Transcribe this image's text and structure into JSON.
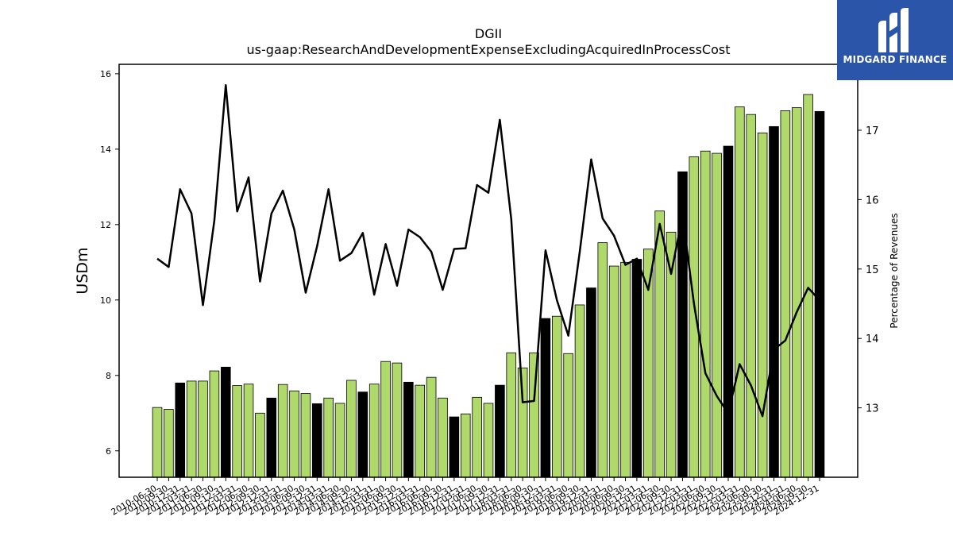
{
  "chart_data": {
    "type": "bar",
    "title": "DGII",
    "subtitle": "us-gaap:ResearchAndDevelopmentExpenseExcludingAcquiredInProcessCost",
    "ylabel": "USDm",
    "y2label": "Percentage of Revenues",
    "ylim": [
      5.3,
      16.25
    ],
    "y2lim": [
      12.0,
      17.95
    ],
    "yticks": [
      6,
      8,
      10,
      12,
      14,
      16
    ],
    "y2ticks": [
      13,
      14,
      15,
      16,
      17
    ],
    "grid": false,
    "bar_colors": {
      "quarter": "#b0d96b",
      "fiscal_year_end": "#000000"
    },
    "line_color": "#000000",
    "x_labels": [
      "2010-06-30",
      "2010-09-30",
      "2010-12-31",
      "2011-03-31",
      "2011-06-30",
      "2011-09-30",
      "2011-12-31",
      "2012-03-31",
      "2012-06-30",
      "2012-09-30",
      "2012-12-31",
      "2013-03-31",
      "2013-06-30",
      "2013-09-30",
      "2013-12-31",
      "2014-03-31",
      "2014-06-30",
      "2014-09-30",
      "2014-12-31",
      "2015-03-31",
      "2015-06-30",
      "2015-09-30",
      "2015-12-31",
      "2016-03-31",
      "2016-06-30",
      "2016-09-30",
      "2016-12-31",
      "2017-03-31",
      "2017-06-30",
      "2017-09-30",
      "2017-12-31",
      "2018-03-31",
      "2018-06-30",
      "2018-09-30",
      "2018-12-31",
      "2019-03-31",
      "2019-06-30",
      "2019-09-30",
      "2019-12-31",
      "2020-03-31",
      "2020-06-30",
      "2020-09-30",
      "2020-12-31",
      "2021-03-31",
      "2021-06-30",
      "2021-09-30",
      "2021-12-31",
      "2022-03-31",
      "2022-06-30",
      "2022-09-30",
      "2022-12-31",
      "2023-03-31",
      "2023-06-30",
      "2023-09-30",
      "2023-12-31",
      "2024-03-31",
      "2024-06-30",
      "2024-09-30",
      "2024-12-31"
    ],
    "series": [
      {
        "type": "bar",
        "values": [
          7.15,
          7.1,
          7.8,
          7.85,
          7.85,
          8.12,
          8.22,
          7.73,
          7.77,
          7.0,
          7.4,
          7.76,
          7.59,
          7.52,
          7.25,
          7.4,
          7.26,
          7.87,
          7.56,
          7.77,
          8.37,
          8.33,
          7.82,
          7.74,
          7.95,
          7.4,
          6.9,
          6.98,
          7.42,
          7.26,
          7.74,
          8.6,
          8.2,
          8.6,
          9.51,
          9.57,
          8.58,
          9.87,
          10.32,
          11.52,
          10.9,
          11.0,
          11.08,
          11.35,
          12.36,
          11.8,
          13.4,
          13.8,
          13.95,
          13.89,
          14.08,
          15.12,
          14.92,
          14.43,
          14.6,
          15.02,
          15.1,
          15.45,
          15.0
        ],
        "fiscal_year_end": [
          false,
          false,
          true,
          false,
          false,
          false,
          true,
          false,
          false,
          false,
          true,
          false,
          false,
          false,
          true,
          false,
          false,
          false,
          true,
          false,
          false,
          false,
          true,
          false,
          false,
          false,
          true,
          false,
          false,
          false,
          true,
          false,
          false,
          false,
          true,
          false,
          false,
          false,
          true,
          false,
          false,
          false,
          true,
          false,
          false,
          false,
          true,
          false,
          false,
          false,
          true,
          false,
          false,
          false,
          true,
          false,
          false,
          false,
          true
        ]
      },
      {
        "type": "line",
        "axis": "right",
        "values": [
          15.15,
          15.03,
          16.15,
          15.8,
          14.48,
          15.7,
          17.65,
          15.83,
          16.32,
          14.82,
          15.8,
          16.13,
          15.57,
          14.66,
          15.33,
          16.15,
          15.12,
          15.23,
          15.52,
          14.63,
          15.36,
          14.76,
          15.57,
          15.46,
          15.25,
          14.7,
          15.29,
          15.3,
          16.21,
          16.1,
          17.15,
          15.72,
          13.08,
          13.1,
          15.27,
          14.55,
          14.04,
          15.25,
          16.58,
          15.73,
          15.48,
          15.06,
          15.15,
          14.7,
          15.65,
          14.93,
          15.77,
          14.5,
          13.5,
          13.17,
          12.92,
          13.63,
          13.32,
          12.88,
          13.84,
          13.97,
          14.38,
          14.73,
          14.55
        ]
      }
    ]
  },
  "logo": {
    "text": "MIDGARD FINANCE"
  }
}
